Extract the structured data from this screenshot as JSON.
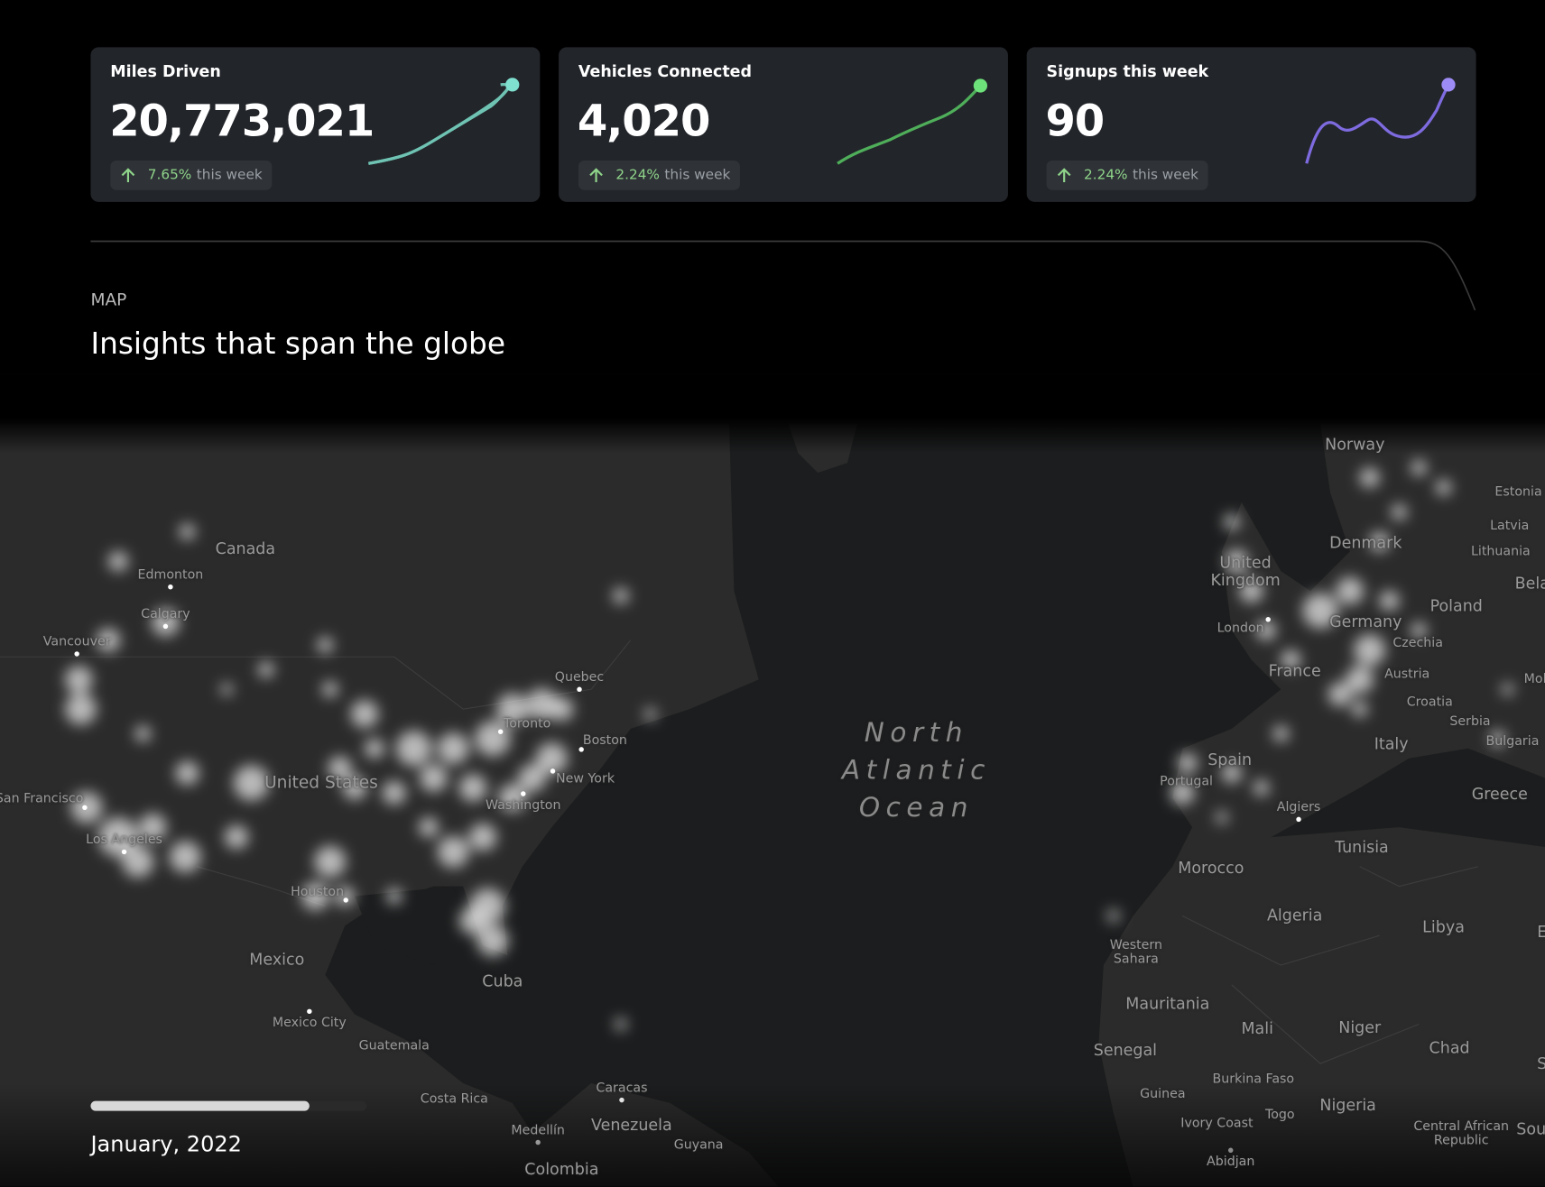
{
  "cards": [
    {
      "title": "Miles Driven",
      "value": "20,773,021",
      "change": "7.65%",
      "period": "this week"
    },
    {
      "title": "Vehicles Connected",
      "value": "4,020",
      "change": "2.24%",
      "period": "this week"
    },
    {
      "title": "Signups this week",
      "value": "90",
      "change": "2.24%",
      "period": "this week"
    }
  ],
  "section": {
    "label": "MAP",
    "heading": "Insights that span the globe"
  },
  "map": {
    "labels": [
      "Canada",
      "Edmonton",
      "Calgary",
      "Vancouver",
      "San Francisco",
      "Los Angeles",
      "United States",
      "Houston",
      "Mexico",
      "Mexico City",
      "Guatemala",
      "Costa Rica",
      "Medellín",
      "Colombia",
      "Caracas",
      "Venezuela",
      "Guyana",
      "Cuba",
      "Quebec",
      "Toronto",
      "Boston",
      "New York",
      "Washington",
      "North Atlantic Ocean",
      "Norway",
      "Estonia",
      "Latvia",
      "Lithuania",
      "Denmark",
      "United Kingdom",
      "London",
      "Germany",
      "Poland",
      "Bela",
      "Czechia",
      "France",
      "Austria",
      "Mol",
      "Croatia",
      "Serbia",
      "Bulgaria",
      "Italy",
      "Spain",
      "Portugal",
      "Greece",
      "Algiers",
      "Tunisia",
      "Morocco",
      "Algeria",
      "Libya",
      "E",
      "Western Sahara",
      "Mauritania",
      "Mali",
      "Niger",
      "Senegal",
      "Chad",
      "S",
      "Guinea",
      "Burkina Faso",
      "Togo",
      "Nigeria",
      "Ivory Coast",
      "Central African Republic",
      "Sou",
      "Abidjan"
    ]
  },
  "timeline": {
    "date": "January, 2022"
  }
}
